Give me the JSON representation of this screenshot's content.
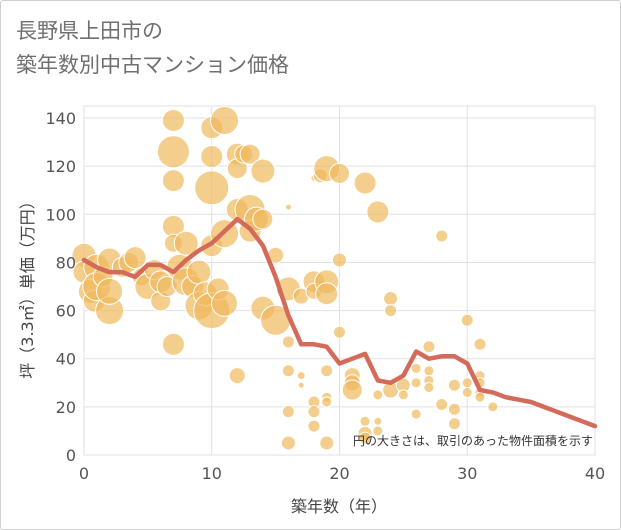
{
  "title": {
    "line1": "長野県上田市の",
    "line2": "築年数別中古マンション価格"
  },
  "note": "円の大きさは、取引のあった物件面積を示す",
  "colors": {
    "bubble": "#f0b95c",
    "line": "#d46a5a",
    "grid": "#dde1e8"
  },
  "chart_data": {
    "type": "scatter",
    "xlabel": "築年数（年）",
    "ylabel": "坪（3.3㎡）単価（万円）",
    "xlim": [
      0,
      40
    ],
    "ylim": [
      0,
      145
    ],
    "xticks": [
      0,
      10,
      20,
      30,
      40
    ],
    "yticks": [
      0,
      20,
      40,
      60,
      80,
      100,
      120,
      140
    ],
    "grid": true,
    "series": [
      {
        "kind": "bubble",
        "points": [
          {
            "x": 0,
            "y": 83,
            "s": 12
          },
          {
            "x": 0,
            "y": 76,
            "s": 11
          },
          {
            "x": 0.5,
            "y": 68,
            "s": 12
          },
          {
            "x": 0.8,
            "y": 64,
            "s": 11
          },
          {
            "x": 1,
            "y": 78,
            "s": 13
          },
          {
            "x": 1,
            "y": 70,
            "s": 14
          },
          {
            "x": 1.5,
            "y": 74,
            "s": 10
          },
          {
            "x": 2,
            "y": 81,
            "s": 12
          },
          {
            "x": 2,
            "y": 60,
            "s": 14
          },
          {
            "x": 2,
            "y": 68,
            "s": 13
          },
          {
            "x": 3,
            "y": 78,
            "s": 10
          },
          {
            "x": 3.5,
            "y": 80,
            "s": 10
          },
          {
            "x": 4,
            "y": 82,
            "s": 11
          },
          {
            "x": 4.5,
            "y": 74,
            "s": 9
          },
          {
            "x": 5,
            "y": 70,
            "s": 13
          },
          {
            "x": 5.5,
            "y": 77,
            "s": 10
          },
          {
            "x": 6,
            "y": 64,
            "s": 10
          },
          {
            "x": 6,
            "y": 72,
            "s": 11
          },
          {
            "x": 6.5,
            "y": 70,
            "s": 10
          },
          {
            "x": 7,
            "y": 139,
            "s": 11
          },
          {
            "x": 7,
            "y": 126,
            "s": 16
          },
          {
            "x": 7,
            "y": 114,
            "s": 11
          },
          {
            "x": 7,
            "y": 95,
            "s": 11
          },
          {
            "x": 7,
            "y": 88,
            "s": 9
          },
          {
            "x": 7,
            "y": 46,
            "s": 11
          },
          {
            "x": 7.5,
            "y": 78,
            "s": 13
          },
          {
            "x": 8,
            "y": 88,
            "s": 12
          },
          {
            "x": 8,
            "y": 72,
            "s": 14
          },
          {
            "x": 8.5,
            "y": 70,
            "s": 11
          },
          {
            "x": 9,
            "y": 76,
            "s": 12
          },
          {
            "x": 9,
            "y": 62,
            "s": 14
          },
          {
            "x": 9.5,
            "y": 67,
            "s": 12
          },
          {
            "x": 10,
            "y": 136,
            "s": 11
          },
          {
            "x": 10,
            "y": 124,
            "s": 11
          },
          {
            "x": 10,
            "y": 111,
            "s": 17
          },
          {
            "x": 10,
            "y": 87,
            "s": 11
          },
          {
            "x": 10,
            "y": 60,
            "s": 18
          },
          {
            "x": 10.5,
            "y": 69,
            "s": 11
          },
          {
            "x": 11,
            "y": 92,
            "s": 14
          },
          {
            "x": 11,
            "y": 63,
            "s": 13
          },
          {
            "x": 11,
            "y": 139,
            "s": 14
          },
          {
            "x": 12,
            "y": 125,
            "s": 11
          },
          {
            "x": 12,
            "y": 119,
            "s": 10
          },
          {
            "x": 12,
            "y": 102,
            "s": 11
          },
          {
            "x": 12,
            "y": 33,
            "s": 8
          },
          {
            "x": 12.5,
            "y": 125,
            "s": 9
          },
          {
            "x": 13,
            "y": 125,
            "s": 10
          },
          {
            "x": 13,
            "y": 102,
            "s": 15
          },
          {
            "x": 13,
            "y": 93,
            "s": 11
          },
          {
            "x": 13.5,
            "y": 98,
            "s": 12
          },
          {
            "x": 14,
            "y": 118,
            "s": 12
          },
          {
            "x": 14,
            "y": 98,
            "s": 10
          },
          {
            "x": 14,
            "y": 61,
            "s": 12
          },
          {
            "x": 15,
            "y": 83,
            "s": 8
          },
          {
            "x": 15,
            "y": 56,
            "s": 15
          },
          {
            "x": 16,
            "y": 103,
            "s": 3
          },
          {
            "x": 16,
            "y": 69,
            "s": 12
          },
          {
            "x": 16,
            "y": 47,
            "s": 6
          },
          {
            "x": 16,
            "y": 35,
            "s": 6
          },
          {
            "x": 16,
            "y": 18,
            "s": 6
          },
          {
            "x": 16,
            "y": 5,
            "s": 7
          },
          {
            "x": 17,
            "y": 66,
            "s": 8
          },
          {
            "x": 17,
            "y": 33,
            "s": 4
          },
          {
            "x": 17,
            "y": 29,
            "s": 3
          },
          {
            "x": 18,
            "y": 115,
            "s": 3
          },
          {
            "x": 18,
            "y": 72,
            "s": 11
          },
          {
            "x": 18,
            "y": 68,
            "s": 8
          },
          {
            "x": 18,
            "y": 22,
            "s": 6
          },
          {
            "x": 18,
            "y": 18,
            "s": 6
          },
          {
            "x": 18,
            "y": 12,
            "s": 6
          },
          {
            "x": 18.5,
            "y": 116,
            "s": 7
          },
          {
            "x": 19,
            "y": 119,
            "s": 13
          },
          {
            "x": 19,
            "y": 72,
            "s": 12
          },
          {
            "x": 19,
            "y": 67,
            "s": 11
          },
          {
            "x": 19,
            "y": 35,
            "s": 6
          },
          {
            "x": 19,
            "y": 24,
            "s": 5
          },
          {
            "x": 19,
            "y": 22,
            "s": 5
          },
          {
            "x": 19,
            "y": 5,
            "s": 7
          },
          {
            "x": 20,
            "y": 117,
            "s": 10
          },
          {
            "x": 20,
            "y": 81,
            "s": 7
          },
          {
            "x": 20,
            "y": 51,
            "s": 6
          },
          {
            "x": 21,
            "y": 33,
            "s": 8
          },
          {
            "x": 21,
            "y": 30,
            "s": 8
          },
          {
            "x": 21,
            "y": 27,
            "s": 10
          },
          {
            "x": 22,
            "y": 113,
            "s": 11
          },
          {
            "x": 22,
            "y": 14,
            "s": 5
          },
          {
            "x": 22,
            "y": 9,
            "s": 7
          },
          {
            "x": 22,
            "y": 7,
            "s": 6
          },
          {
            "x": 23,
            "y": 101,
            "s": 11
          },
          {
            "x": 23,
            "y": 25,
            "s": 5
          },
          {
            "x": 23,
            "y": 14,
            "s": 4
          },
          {
            "x": 23,
            "y": 10,
            "s": 5
          },
          {
            "x": 24,
            "y": 65,
            "s": 7
          },
          {
            "x": 24,
            "y": 60,
            "s": 6
          },
          {
            "x": 24,
            "y": 27,
            "s": 8
          },
          {
            "x": 25,
            "y": 29,
            "s": 7
          },
          {
            "x": 25,
            "y": 25,
            "s": 5
          },
          {
            "x": 26,
            "y": 36,
            "s": 5
          },
          {
            "x": 26,
            "y": 30,
            "s": 5
          },
          {
            "x": 26,
            "y": 17,
            "s": 5
          },
          {
            "x": 27,
            "y": 45,
            "s": 6
          },
          {
            "x": 27,
            "y": 35,
            "s": 5
          },
          {
            "x": 27,
            "y": 31,
            "s": 5
          },
          {
            "x": 27,
            "y": 28,
            "s": 5
          },
          {
            "x": 28,
            "y": 91,
            "s": 6
          },
          {
            "x": 28,
            "y": 21,
            "s": 6
          },
          {
            "x": 29,
            "y": 29,
            "s": 6
          },
          {
            "x": 29,
            "y": 19,
            "s": 6
          },
          {
            "x": 29,
            "y": 13,
            "s": 6
          },
          {
            "x": 30,
            "y": 56,
            "s": 6
          },
          {
            "x": 30,
            "y": 30,
            "s": 5
          },
          {
            "x": 30,
            "y": 26,
            "s": 5
          },
          {
            "x": 31,
            "y": 46,
            "s": 6
          },
          {
            "x": 31,
            "y": 33,
            "s": 5
          },
          {
            "x": 31,
            "y": 30,
            "s": 5
          },
          {
            "x": 31,
            "y": 26,
            "s": 5
          },
          {
            "x": 31,
            "y": 24,
            "s": 5
          },
          {
            "x": 32,
            "y": 20,
            "s": 5
          }
        ]
      },
      {
        "kind": "line",
        "x": [
          0,
          1,
          2,
          3,
          4,
          5,
          6,
          7,
          8,
          9,
          10,
          11,
          12,
          13,
          14,
          15,
          16,
          17,
          18,
          19,
          20,
          21,
          22,
          23,
          24,
          25,
          26,
          27,
          28,
          29,
          30,
          31,
          32,
          33,
          34,
          35,
          36,
          37,
          38,
          39,
          40
        ],
        "y": [
          81,
          78,
          76,
          76,
          74,
          79,
          79,
          76,
          81,
          85,
          88,
          93,
          98,
          94,
          87,
          74,
          58,
          46,
          46,
          45,
          38,
          40,
          42,
          31,
          30,
          33,
          43,
          40,
          41,
          41,
          38,
          27,
          26,
          24,
          23,
          22,
          20,
          18,
          16,
          14,
          12
        ]
      }
    ]
  }
}
